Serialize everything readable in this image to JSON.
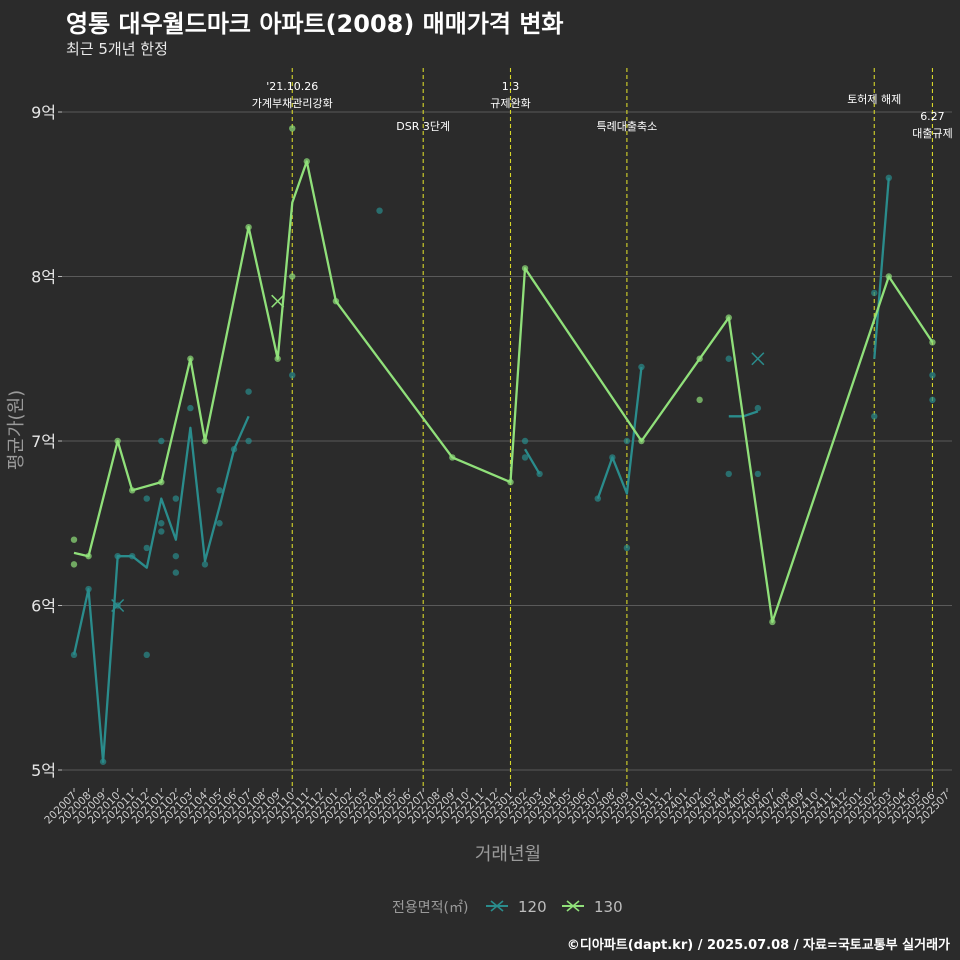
{
  "title": "영통 대우월드마크 아파트(2008) 매매가격 변화",
  "subtitle": "최근 5개년 한정",
  "caption": "©디아파트(dapt.kr) / 2025.07.08 / 자료=국토교통부 실거래가",
  "colors": {
    "s120": "#2a8c8c",
    "s130": "#90e07a",
    "vline": "#d6d62a",
    "grid": "#5a5a5a",
    "text": "#d0d0d0"
  },
  "chart_data": {
    "type": "line",
    "xlabel": "거래년월",
    "ylabel": "평균가(원)",
    "legend_title": "전용면적(㎡)",
    "legend_position": "bottom",
    "grid": true,
    "ylim": [
      4.85,
      9.25
    ],
    "y_ticks": [
      {
        "v": 5,
        "label": "5억"
      },
      {
        "v": 6,
        "label": "6억"
      },
      {
        "v": 7,
        "label": "7억"
      },
      {
        "v": 8,
        "label": "8억"
      },
      {
        "v": 9,
        "label": "9억"
      }
    ],
    "x_categories": [
      "202007",
      "202008",
      "202009",
      "202010",
      "202011",
      "202012",
      "202101",
      "202102",
      "202103",
      "202104",
      "202105",
      "202106",
      "202107",
      "202108",
      "202109",
      "202110",
      "202111",
      "202112",
      "202201",
      "202202",
      "202203",
      "202204",
      "202205",
      "202206",
      "202207",
      "202208",
      "202209",
      "202210",
      "202211",
      "202212",
      "202301",
      "202302",
      "202303",
      "202304",
      "202305",
      "202306",
      "202307",
      "202308",
      "202309",
      "202310",
      "202311",
      "202312",
      "202401",
      "202402",
      "202403",
      "202404",
      "202405",
      "202406",
      "202407",
      "202408",
      "202409",
      "202410",
      "202411",
      "202412",
      "202501",
      "202502",
      "202503",
      "202504",
      "202505",
      "202506",
      "202507"
    ],
    "events": [
      {
        "x": 15.0,
        "lines": [
          "'21.10.26",
          "가계부채관리강화"
        ],
        "level": 0
      },
      {
        "x": 24.0,
        "lines": [
          "DSR 3단계"
        ],
        "level": 2
      },
      {
        "x": 30.0,
        "lines": [
          "1.3",
          "규제완화"
        ],
        "level": 0
      },
      {
        "x": 38.0,
        "lines": [
          "특례대출축소"
        ],
        "level": 2
      },
      {
        "x": 55.0,
        "lines": [
          "토허제 해제"
        ],
        "level": 1
      },
      {
        "x": 59.0,
        "lines": [
          "6.27",
          "대출규제"
        ],
        "level": 3
      }
    ],
    "series": [
      {
        "name": "120",
        "color_key": "s120",
        "line_segments": [
          [
            [
              0,
              5.7
            ],
            [
              1,
              6.1
            ],
            [
              2,
              5.05
            ],
            [
              3,
              6.3
            ],
            [
              4,
              6.3
            ],
            [
              5,
              6.23
            ],
            [
              6,
              6.65
            ],
            [
              7,
              6.4
            ],
            [
              8,
              7.08
            ],
            [
              9,
              6.27
            ],
            [
              10,
              6.6
            ],
            [
              11,
              6.95
            ],
            [
              12,
              7.15
            ]
          ],
          [
            [
              31,
              6.95
            ],
            [
              32,
              6.8
            ]
          ],
          [
            [
              36,
              6.65
            ],
            [
              37,
              6.9
            ],
            [
              38,
              6.68
            ],
            [
              39,
              7.45
            ]
          ],
          [
            [
              45,
              7.15
            ],
            [
              46,
              7.15
            ],
            [
              47,
              7.18
            ]
          ],
          [
            [
              55,
              7.5
            ],
            [
              56,
              8.6
            ]
          ]
        ],
        "points": [
          [
            0,
            5.7
          ],
          [
            1,
            6.1
          ],
          [
            2,
            5.05
          ],
          [
            3,
            6.3
          ],
          [
            3,
            6.0
          ],
          [
            4,
            6.3
          ],
          [
            5,
            6.35
          ],
          [
            5,
            6.65
          ],
          [
            5,
            5.7
          ],
          [
            6,
            7.0
          ],
          [
            6,
            6.5
          ],
          [
            6,
            6.45
          ],
          [
            7,
            6.65
          ],
          [
            7,
            6.3
          ],
          [
            7,
            6.2
          ],
          [
            8,
            7.2
          ],
          [
            9,
            6.25
          ],
          [
            10,
            6.7
          ],
          [
            10,
            6.5
          ],
          [
            11,
            6.95
          ],
          [
            12,
            7.3
          ],
          [
            12,
            7.0
          ],
          [
            15,
            7.4
          ],
          [
            21,
            8.4
          ],
          [
            31,
            7.0
          ],
          [
            31,
            6.9
          ],
          [
            32,
            6.8
          ],
          [
            36,
            6.65
          ],
          [
            37,
            6.9
          ],
          [
            38,
            6.35
          ],
          [
            38,
            7.0
          ],
          [
            39,
            7.45
          ],
          [
            45,
            7.5
          ],
          [
            45,
            6.8
          ],
          [
            47,
            7.2
          ],
          [
            47,
            6.8
          ],
          [
            55,
            7.9
          ],
          [
            55,
            7.15
          ],
          [
            56,
            8.6
          ],
          [
            59,
            7.4
          ],
          [
            59,
            7.25
          ]
        ],
        "cross_points": [
          [
            3,
            6.0
          ],
          [
            47,
            7.5
          ]
        ]
      },
      {
        "name": "130",
        "color_key": "s130",
        "line_segments": [
          [
            [
              0,
              6.32
            ],
            [
              1,
              6.3
            ],
            [
              3,
              7.0
            ],
            [
              4,
              6.7
            ],
            [
              6,
              6.75
            ],
            [
              8,
              7.5
            ],
            [
              9,
              7.0
            ],
            [
              12,
              8.3
            ],
            [
              14,
              7.5
            ],
            [
              15,
              8.45
            ],
            [
              16,
              8.7
            ],
            [
              18,
              7.85
            ],
            [
              26,
              6.9
            ],
            [
              30,
              6.75
            ],
            [
              31,
              8.05
            ],
            [
              39,
              7.0
            ],
            [
              45,
              7.75
            ],
            [
              48,
              5.9
            ],
            [
              56,
              8.0
            ],
            [
              59,
              7.6
            ]
          ]
        ],
        "points": [
          [
            0,
            6.4
          ],
          [
            0,
            6.25
          ],
          [
            1,
            6.3
          ],
          [
            3,
            7.0
          ],
          [
            4,
            6.7
          ],
          [
            6,
            6.75
          ],
          [
            8,
            7.5
          ],
          [
            9,
            7.0
          ],
          [
            12,
            8.3
          ],
          [
            14,
            7.5
          ],
          [
            15,
            8.9
          ],
          [
            15,
            8.0
          ],
          [
            16,
            8.7
          ],
          [
            18,
            7.85
          ],
          [
            26,
            6.9
          ],
          [
            30,
            6.75
          ],
          [
            31,
            8.05
          ],
          [
            39,
            7.0
          ],
          [
            43,
            7.5
          ],
          [
            43,
            7.25
          ],
          [
            45,
            7.75
          ],
          [
            48,
            5.9
          ],
          [
            56,
            8.0
          ],
          [
            59,
            7.6
          ]
        ],
        "cross_points": [
          [
            14,
            7.85
          ]
        ]
      }
    ]
  }
}
